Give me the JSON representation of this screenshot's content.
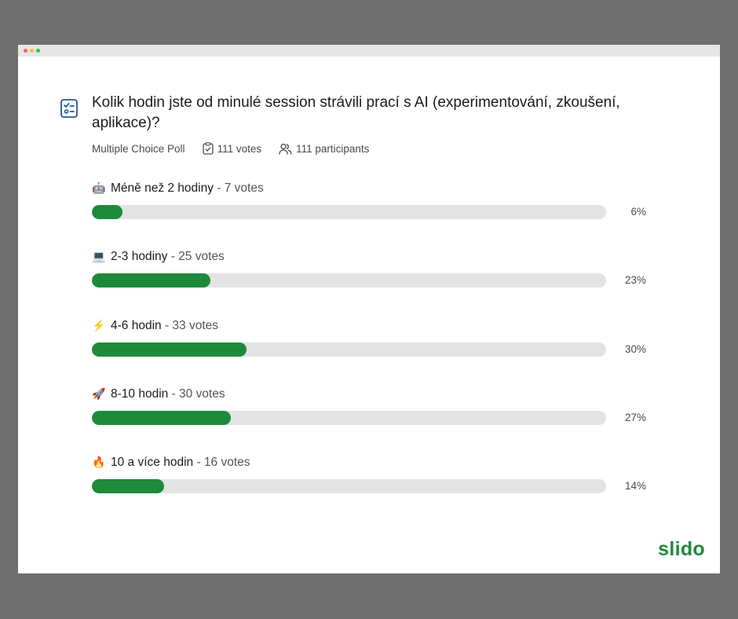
{
  "question": "Kolik hodin jste od minulé session strávili prací s AI (experimentování, zkoušení, aplikace)?",
  "meta": {
    "poll_type": "Multiple Choice Poll",
    "votes": "111 votes",
    "participants": "111 participants"
  },
  "options": [
    {
      "emoji": "🤖",
      "label": "Méně než 2 hodiny",
      "votes_text": " - 7 votes",
      "percent": "6%",
      "fraction": 0.06
    },
    {
      "emoji": "💻",
      "label": "2-3 hodiny",
      "votes_text": " - 25 votes",
      "percent": "23%",
      "fraction": 0.23
    },
    {
      "emoji": "⚡",
      "label": "4-6 hodin",
      "votes_text": " - 33 votes",
      "percent": "30%",
      "fraction": 0.3
    },
    {
      "emoji": "🚀",
      "label": "8-10 hodin",
      "votes_text": " - 30 votes",
      "percent": "27%",
      "fraction": 0.27
    },
    {
      "emoji": "🔥",
      "label": "10 a více hodin",
      "votes_text": " - 16 votes",
      "percent": "14%",
      "fraction": 0.14
    }
  ],
  "brand": "slido",
  "colors": {
    "accent": "#1d8a3a",
    "track": "#e3e3e3"
  },
  "icons": {
    "poll": "checklist-icon",
    "votes": "clipboard-check-icon",
    "participants": "people-icon"
  }
}
